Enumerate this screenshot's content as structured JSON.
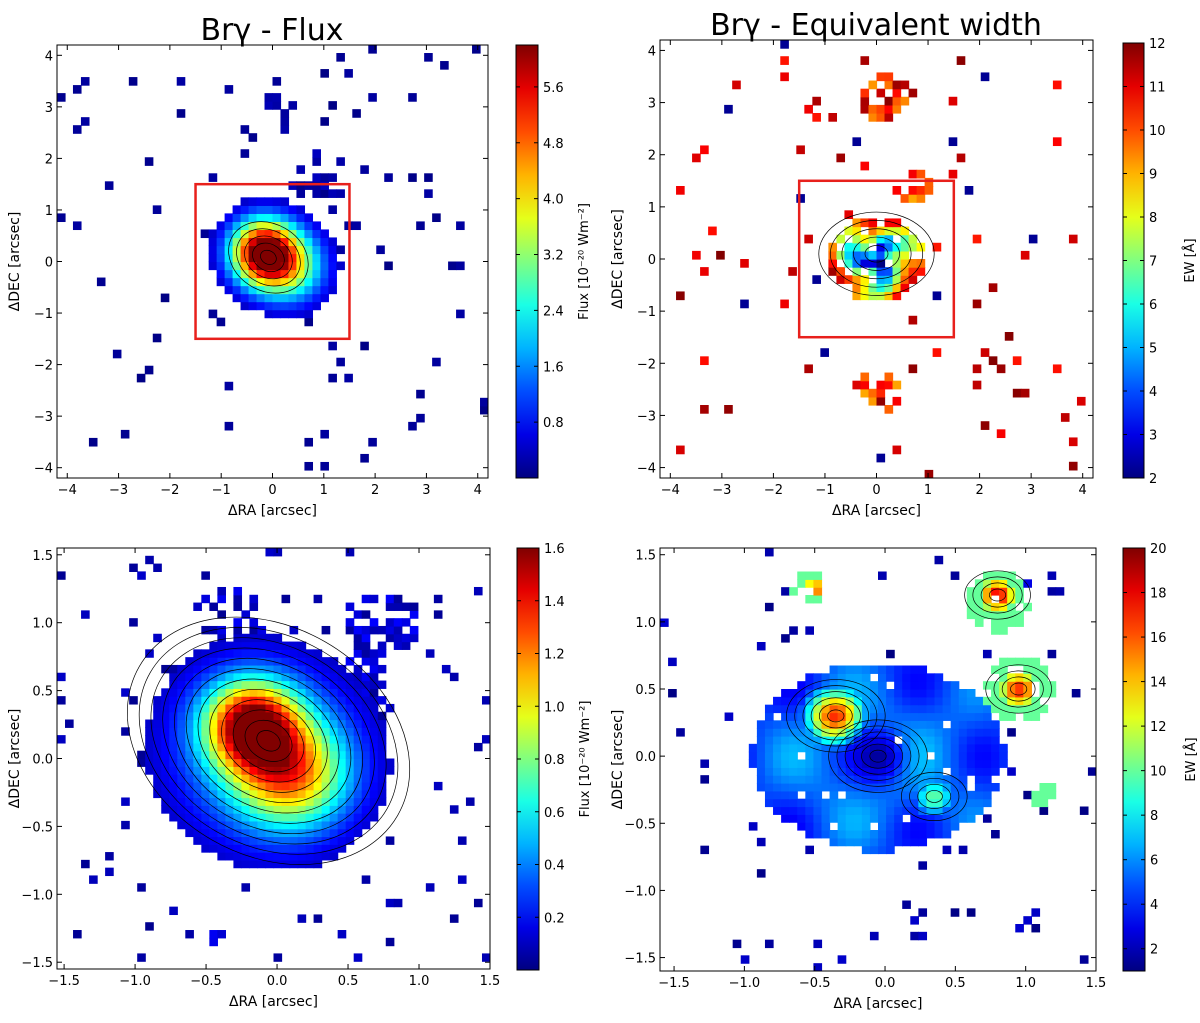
{
  "chart_data": [
    {
      "type": "heatmap",
      "title": "Brγ - Flux",
      "xlabel": "ΔRA [arcsec]",
      "ylabel": "ΔDEC [arcsec]",
      "xlim": [
        -4.2,
        4.2
      ],
      "ylim": [
        -4.2,
        4.2
      ],
      "xticks": [
        -4,
        -3,
        -2,
        -1,
        0,
        1,
        2,
        3,
        4
      ],
      "xtick_labels": [
        "−4",
        "−3",
        "−2",
        "−1",
        "0",
        "1",
        "2",
        "3",
        "4"
      ],
      "yticks": [
        -4,
        -3,
        -2,
        -1,
        0,
        1,
        2,
        3,
        4
      ],
      "ytick_labels": [
        "−4",
        "−3",
        "−2",
        "−1",
        "0",
        "1",
        "2",
        "3",
        "4"
      ],
      "colorbar": {
        "label": "Flux [10⁻²⁰ Wm⁻²]",
        "range": [
          0,
          6.2
        ],
        "ticks": [
          0.8,
          1.6,
          2.4,
          3.2,
          4.0,
          4.8,
          5.6
        ],
        "tick_labels": [
          "0.8",
          "1.6",
          "2.4",
          "3.2",
          "4.0",
          "4.8",
          "5.6"
        ]
      },
      "highlight_box": {
        "x0": -1.5,
        "x1": 1.5,
        "y0": -1.5,
        "y1": 1.5,
        "color": "#e8201c"
      },
      "emission": [
        {
          "x": -0.2,
          "y": 0.2,
          "peak": 6.0,
          "sigma": 0.45
        },
        {
          "x": 0.35,
          "y": -0.1,
          "peak": 3.0,
          "sigma": 0.5
        }
      ],
      "clump_regions": [
        {
          "x": -0.05,
          "y": 0.1,
          "r": 1.05,
          "fill": 0.85
        },
        {
          "x": 0.9,
          "y": 1.6,
          "r": 0.55,
          "fill": 0.55
        },
        {
          "x": 0.2,
          "y": 2.9,
          "r": 0.45,
          "fill": 0.45
        }
      ],
      "background_fill": 0.028,
      "background_value": [
        0.03,
        0.22
      ],
      "clump_value": [
        0.05,
        0.4
      ]
    },
    {
      "type": "heatmap",
      "title": "Brγ - Equivalent width",
      "xlabel": "ΔRA [arcsec]",
      "ylabel": "ΔDEC [arcsec]",
      "xlim": [
        -4.2,
        4.2
      ],
      "ylim": [
        -4.2,
        4.2
      ],
      "xticks": [
        -4,
        -3,
        -2,
        -1,
        0,
        1,
        2,
        3,
        4
      ],
      "xtick_labels": [
        "−4",
        "−3",
        "−2",
        "−1",
        "0",
        "1",
        "2",
        "3",
        "4"
      ],
      "yticks": [
        -4,
        -3,
        -2,
        -1,
        0,
        1,
        2,
        3,
        4
      ],
      "ytick_labels": [
        "−4",
        "−3",
        "−2",
        "−1",
        "0",
        "1",
        "2",
        "3",
        "4"
      ],
      "colorbar": {
        "label": "EW [Å]",
        "range": [
          2,
          12
        ],
        "ticks": [
          2,
          3,
          4,
          5,
          6,
          7,
          8,
          9,
          10,
          11,
          12
        ],
        "tick_labels": [
          "2",
          "3",
          "4",
          "5",
          "6",
          "7",
          "8",
          "9",
          "10",
          "11",
          "12"
        ]
      },
      "highlight_box": {
        "x0": -1.5,
        "x1": 1.5,
        "y0": -1.5,
        "y1": 1.5,
        "color": "#e8201c"
      },
      "core": {
        "x": 0.0,
        "y": 0.0,
        "r": 0.9,
        "min_value": 2.5
      },
      "clump_regions": [
        {
          "x": 0.1,
          "y": 3.1,
          "r": 0.45,
          "fill": 0.8
        },
        {
          "x": 0.7,
          "y": 1.4,
          "r": 0.35,
          "fill": 0.6
        },
        {
          "x": 0.0,
          "y": -2.5,
          "r": 0.45,
          "fill": 0.55
        }
      ],
      "background_fill": 0.03,
      "background_value": [
        10.5,
        12
      ]
    },
    {
      "type": "heatmap",
      "title": "",
      "xlabel": "ΔRA [arcsec]",
      "ylabel": "ΔDEC [arcsec]",
      "xlim": [
        -1.55,
        1.5
      ],
      "ylim": [
        -1.55,
        1.55
      ],
      "xticks": [
        -1.5,
        -1.0,
        -0.5,
        0.0,
        0.5,
        1.0,
        1.5
      ],
      "xtick_labels": [
        "−1.5",
        "−1.0",
        "−0.5",
        "0.0",
        "0.5",
        "1.0",
        "1.5"
      ],
      "yticks": [
        -1.5,
        -1.0,
        -0.5,
        0.0,
        0.5,
        1.0,
        1.5
      ],
      "ytick_labels": [
        "−1.5",
        "−1.0",
        "−0.5",
        "0.0",
        "0.5",
        "1.0",
        "1.5"
      ],
      "colorbar": {
        "label": "Flux [10⁻²⁰ Wm⁻²]",
        "range": [
          0,
          1.6
        ],
        "ticks": [
          0.2,
          0.4,
          0.6,
          0.8,
          1.0,
          1.2,
          1.4,
          1.6
        ],
        "tick_labels": [
          "0.2",
          "0.4",
          "0.6",
          "0.8",
          "1.0",
          "1.2",
          "1.4",
          "1.6"
        ]
      },
      "emission": [
        {
          "x": -0.18,
          "y": 0.25,
          "peak": 1.35,
          "sigma": 0.22
        },
        {
          "x": 0.1,
          "y": -0.12,
          "peak": 0.9,
          "sigma": 0.27
        },
        {
          "x": -0.1,
          "y": 0.05,
          "peak": 0.45,
          "sigma": 0.5
        }
      ],
      "clump_regions": [
        {
          "x": 0.72,
          "y": 0.95,
          "r": 0.28,
          "fill": 0.75
        },
        {
          "x": 0.55,
          "y": 0.45,
          "r": 0.3,
          "fill": 0.7
        },
        {
          "x": -0.35,
          "y": 0.95,
          "r": 0.3,
          "fill": 0.5
        },
        {
          "x": -0.4,
          "y": -1.3,
          "r": 0.08,
          "fill": 0.9
        }
      ],
      "background_fill": 0.035,
      "background_value": [
        0.02,
        0.12
      ],
      "clump_value": [
        0.03,
        0.2
      ]
    },
    {
      "type": "heatmap",
      "title": "",
      "xlabel": "ΔRA [arcsec]",
      "ylabel": "ΔDEC [arcsec]",
      "xlim": [
        -1.6,
        1.5
      ],
      "ylim": [
        -1.6,
        1.55
      ],
      "xticks": [
        -1.5,
        -1.0,
        -0.5,
        0.0,
        0.5,
        1.0,
        1.5
      ],
      "xtick_labels": [
        "−1.5",
        "−1.0",
        "−0.5",
        "0.0",
        "0.5",
        "1.0",
        "1.5"
      ],
      "yticks": [
        -1.5,
        -1.0,
        -0.5,
        0.0,
        0.5,
        1.0,
        1.5
      ],
      "ytick_labels": [
        "−1.5",
        "−1.0",
        "−0.5",
        "0.0",
        "0.5",
        "1.0",
        "1.5"
      ],
      "colorbar": {
        "label": "EW [Å]",
        "range": [
          1,
          20
        ],
        "ticks": [
          2,
          4,
          6,
          8,
          10,
          12,
          14,
          16,
          18,
          20
        ],
        "tick_labels": [
          "2",
          "4",
          "6",
          "8",
          "10",
          "12",
          "14",
          "16",
          "18",
          "20"
        ]
      },
      "base": {
        "x": -0.05,
        "y": 0.0,
        "rx": 0.9,
        "ry": 0.7,
        "value": 6.5
      },
      "hot_spots": [
        {
          "x": -0.35,
          "y": 0.3,
          "peak": 17,
          "sigma": 0.16
        },
        {
          "x": 0.35,
          "y": -0.3,
          "peak": 10,
          "sigma": 0.12
        },
        {
          "x": 0.8,
          "y": 1.2,
          "peak": 18,
          "sigma": 0.12
        },
        {
          "x": 0.95,
          "y": 0.5,
          "peak": 17,
          "sigma": 0.13
        },
        {
          "x": -0.5,
          "y": 1.25,
          "peak": 16,
          "sigma": 0.08
        }
      ],
      "cold_spot": {
        "x": -0.05,
        "y": 0.0,
        "value": 1.5,
        "sigma": 0.14
      },
      "clump_regions": [
        {
          "x": 0.8,
          "y": 1.15,
          "r": 0.22,
          "fill": 0.9
        },
        {
          "x": 0.95,
          "y": 0.5,
          "r": 0.25,
          "fill": 0.85
        },
        {
          "x": -0.55,
          "y": 1.25,
          "r": 0.12,
          "fill": 0.7
        },
        {
          "x": 1.15,
          "y": -0.3,
          "r": 0.1,
          "fill": 0.7
        }
      ],
      "background_fill": 0.03,
      "background_value": [
        1,
        2.5
      ]
    }
  ]
}
